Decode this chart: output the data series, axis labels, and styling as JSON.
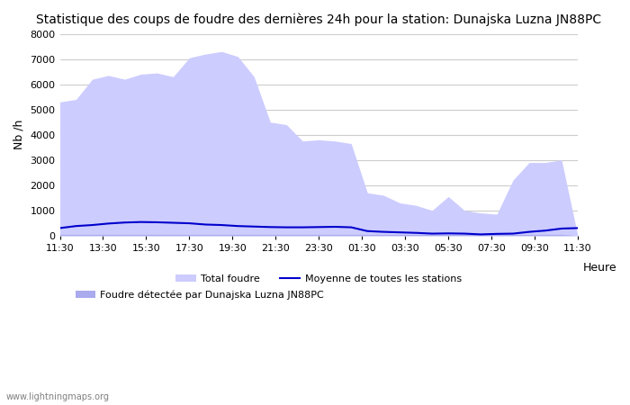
{
  "title": "Statistique des coups de foudre des dernières 24h pour la station: Dunajska Luzna JN88PC",
  "ylabel": "Nb /h",
  "xlabel": "Heure",
  "watermark": "www.lightningmaps.org",
  "x_labels": [
    "11:30",
    "13:30",
    "15:30",
    "17:30",
    "19:30",
    "21:30",
    "23:30",
    "01:30",
    "03:30",
    "05:30",
    "07:30",
    "09:30",
    "11:30"
  ],
  "ylim": [
    0,
    8000
  ],
  "yticks": [
    0,
    1000,
    2000,
    3000,
    4000,
    5000,
    6000,
    7000,
    8000
  ],
  "total_foudre_color": "#ccccff",
  "local_foudre_color": "#aaaaee",
  "line_color": "#0000cc",
  "background_color": "#ffffff",
  "grid_color": "#cccccc",
  "total_foudre": [
    5300,
    5400,
    6200,
    6350,
    6200,
    6400,
    6450,
    6300,
    7050,
    7200,
    7300,
    7100,
    6300,
    4500,
    4400,
    3750,
    3800,
    3750,
    3650,
    1700,
    1600,
    1300,
    1200,
    1000,
    1550,
    1000,
    900,
    850,
    2200,
    2900,
    2900,
    3000,
    0
  ],
  "local_foudre": [
    50,
    50,
    50,
    50,
    50,
    50,
    50,
    50,
    50,
    50,
    50,
    50,
    50,
    50,
    50,
    50,
    50,
    50,
    50,
    50,
    50,
    50,
    50,
    50,
    50,
    50,
    50,
    50,
    50,
    50,
    50,
    50,
    0
  ],
  "avg_line": [
    300,
    380,
    420,
    480,
    520,
    540,
    530,
    510,
    490,
    440,
    420,
    380,
    360,
    340,
    330,
    330,
    340,
    350,
    330,
    180,
    150,
    130,
    110,
    80,
    90,
    80,
    50,
    70,
    80,
    150,
    200,
    280,
    300
  ],
  "legend_total": "Total foudre",
  "legend_avg": "Moyenne de toutes les stations",
  "legend_local": "Foudre détectée par Dunajska Luzna JN88PC"
}
